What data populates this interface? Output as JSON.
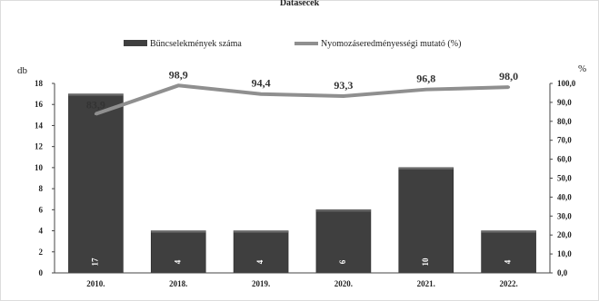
{
  "chart_data": {
    "type": "bar",
    "title": "Datasecek",
    "categories": [
      "2010.",
      "2018.",
      "2019.",
      "2020.",
      "2021.",
      "2022."
    ],
    "series": [
      {
        "name": "Bűncselekmények száma",
        "type": "bar",
        "axis": "left",
        "color": "#3f3f3f",
        "values": [
          17,
          4,
          4,
          6,
          10,
          4
        ],
        "labels": [
          "17",
          "4",
          "4",
          "6",
          "10",
          "4"
        ]
      },
      {
        "name": "Nyomozáseredményességi mutató (%)",
        "type": "line",
        "axis": "right",
        "color": "#8f8f8f",
        "values": [
          83.9,
          98.9,
          94.4,
          93.3,
          96.8,
          98.0
        ],
        "labels": [
          "83,9",
          "98,9",
          "94,4",
          "93,3",
          "96,8",
          "98,0"
        ]
      }
    ],
    "y_left": {
      "label": "db",
      "min": 0,
      "max": 18,
      "ticks": [
        "0",
        "2",
        "4",
        "6",
        "8",
        "10",
        "12",
        "14",
        "16",
        "18"
      ]
    },
    "y_right": {
      "label": "%",
      "min": 0,
      "max": 100,
      "ticks": [
        "0,0",
        "10,0",
        "20,0",
        "30,0",
        "40,0",
        "50,0",
        "60,0",
        "70,0",
        "80,0",
        "90,0",
        "100,0"
      ]
    },
    "grid": false,
    "legend_position": "top-center"
  }
}
